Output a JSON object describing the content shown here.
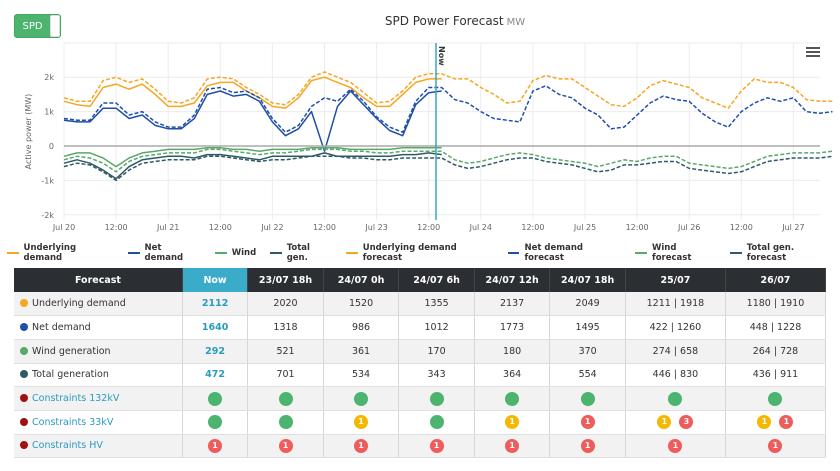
{
  "toggle": {
    "label": "SPD",
    "state": "on"
  },
  "chart_title": "SPD Power Forecast",
  "chart_unit": "MW",
  "menu_icon": "hamburger-menu-icon",
  "colors": {
    "underlying": "#f5a623",
    "net": "#1f4fa8",
    "wind": "#5aa86a",
    "total": "#2e5a66",
    "now_line": "#3aa6bf",
    "zero_line": "#aaaaaa",
    "grid": "#ececec"
  },
  "chart_data": {
    "type": "line",
    "title": "SPD Power Forecast",
    "unit": "MW",
    "ylabel": "Active power (MW)",
    "xlabel": "",
    "ylim": [
      -2200,
      2800
    ],
    "x_range_days": [
      0,
      7.3
    ],
    "x_unit": "days since Jul 20 00:00, sampled every 3h",
    "x_ticks": [
      {
        "day": 0,
        "label": "Jul 20"
      },
      {
        "day": 0.5,
        "label": "12:00"
      },
      {
        "day": 1,
        "label": "Jul 21"
      },
      {
        "day": 1.5,
        "label": "12:00"
      },
      {
        "day": 2,
        "label": "Jul 22"
      },
      {
        "day": 2.5,
        "label": "12:00"
      },
      {
        "day": 3,
        "label": "Jul 23"
      },
      {
        "day": 3.5,
        "label": "12:00"
      },
      {
        "day": 4,
        "label": "Jul 24"
      },
      {
        "day": 4.5,
        "label": "12:00"
      },
      {
        "day": 5,
        "label": "Jul 25"
      },
      {
        "day": 5.5,
        "label": "12:00"
      },
      {
        "day": 6,
        "label": "Jul 26"
      },
      {
        "day": 6.5,
        "label": "12:00"
      },
      {
        "day": 7,
        "label": "Jul 27"
      }
    ],
    "y_ticks": [
      {
        "value": 2000,
        "label": "2k"
      },
      {
        "value": 1000,
        "label": "1k"
      },
      {
        "value": 0,
        "label": "0"
      },
      {
        "value": -1000,
        "label": "-1k"
      },
      {
        "value": -2000,
        "label": "-2k"
      }
    ],
    "now_marker": {
      "day": 3.57,
      "label": "Now"
    },
    "grid": true,
    "legend_position": "bottom",
    "series": [
      {
        "name": "Underlying demand",
        "key": "underlying",
        "dashed": false,
        "start_day": 0,
        "step_days": 0.125,
        "values": [
          1300,
          1200,
          1150,
          1700,
          1800,
          1650,
          1800,
          1500,
          1150,
          1150,
          1250,
          1750,
          1850,
          1850,
          1600,
          1400,
          1150,
          1100,
          1400,
          1900,
          2000,
          1850,
          1700,
          1400,
          1150,
          1150,
          1500,
          1850,
          1950,
          1950
        ]
      },
      {
        "name": "Net demand",
        "key": "net",
        "dashed": false,
        "start_day": 0,
        "step_days": 0.125,
        "values": [
          750,
          700,
          700,
          1100,
          1100,
          800,
          900,
          600,
          500,
          500,
          800,
          1500,
          1600,
          1450,
          1500,
          1300,
          700,
          300,
          500,
          1000,
          -150,
          1150,
          1600,
          1200,
          800,
          450,
          300,
          1200,
          1550,
          1600
        ]
      },
      {
        "name": "Wind",
        "key": "wind",
        "dashed": false,
        "start_day": 0,
        "step_days": 0.125,
        "values": [
          -300,
          -200,
          -200,
          -350,
          -600,
          -350,
          -200,
          -150,
          -100,
          -100,
          -100,
          -50,
          -50,
          -100,
          -100,
          -150,
          -100,
          -100,
          -100,
          -50,
          -50,
          -50,
          -100,
          -100,
          -100,
          -100,
          -50,
          -50,
          -50,
          -50
        ]
      },
      {
        "name": "Total gen.",
        "key": "total",
        "dashed": false,
        "start_day": 0,
        "step_days": 0.125,
        "values": [
          -500,
          -400,
          -500,
          -700,
          -950,
          -600,
          -400,
          -350,
          -300,
          -300,
          -350,
          -250,
          -250,
          -300,
          -350,
          -400,
          -300,
          -300,
          -300,
          -300,
          -200,
          -300,
          -300,
          -300,
          -300,
          -300,
          -250,
          -250,
          -200,
          -250
        ]
      },
      {
        "name": "Underlying demand forecast",
        "key": "underlying",
        "dashed": true,
        "start_day": 0,
        "step_days": 0.125,
        "values": [
          1400,
          1300,
          1300,
          1900,
          2000,
          1850,
          1950,
          1650,
          1300,
          1250,
          1400,
          1950,
          2000,
          1950,
          1700,
          1500,
          1250,
          1200,
          1500,
          2000,
          2150,
          2000,
          1850,
          1550,
          1250,
          1300,
          1600,
          2000,
          2100,
          2100,
          1950,
          1950,
          1700,
          1500,
          1250,
          1300,
          1900,
          2050,
          1950,
          1950,
          1700,
          1450,
          1200,
          1150,
          1400,
          1750,
          1900,
          1800,
          1700,
          1400,
          1250,
          1100,
          1600,
          1950,
          1850,
          1850,
          1700,
          1350,
          1300,
          1300
        ]
      },
      {
        "name": "Net demand forecast",
        "key": "net",
        "dashed": true,
        "start_day": 0,
        "step_days": 0.125,
        "values": [
          800,
          750,
          750,
          1250,
          1250,
          900,
          1000,
          700,
          550,
          550,
          900,
          1650,
          1700,
          1550,
          1600,
          1400,
          800,
          400,
          600,
          1150,
          1400,
          1300,
          1650,
          1300,
          850,
          550,
          400,
          1300,
          1700,
          1700,
          1350,
          1250,
          1000,
          800,
          750,
          700,
          1600,
          1750,
          1500,
          1400,
          1100,
          900,
          500,
          550,
          900,
          1250,
          1450,
          1350,
          1300,
          950,
          700,
          550,
          1000,
          1250,
          1400,
          1300,
          1400,
          1000,
          950,
          1000
        ]
      },
      {
        "name": "Wind forecast",
        "key": "wind",
        "dashed": true,
        "start_day": 0,
        "step_days": 0.125,
        "values": [
          -400,
          -300,
          -350,
          -500,
          -750,
          -450,
          -300,
          -250,
          -200,
          -200,
          -200,
          -100,
          -100,
          -150,
          -200,
          -250,
          -200,
          -200,
          -150,
          -100,
          -100,
          -100,
          -150,
          -150,
          -200,
          -200,
          -150,
          -150,
          -150,
          -150,
          -400,
          -500,
          -450,
          -350,
          -250,
          -200,
          -250,
          -350,
          -400,
          -450,
          -500,
          -600,
          -500,
          -400,
          -450,
          -350,
          -300,
          -300,
          -500,
          -550,
          -600,
          -650,
          -600,
          -450,
          -300,
          -250,
          -200,
          -200,
          -200,
          -150
        ]
      },
      {
        "name": "Total gen. forecast",
        "key": "total",
        "dashed": true,
        "start_day": 0,
        "step_days": 0.125,
        "values": [
          -600,
          -500,
          -550,
          -750,
          -1000,
          -700,
          -500,
          -450,
          -400,
          -400,
          -400,
          -300,
          -300,
          -350,
          -400,
          -450,
          -400,
          -400,
          -350,
          -300,
          -300,
          -300,
          -350,
          -350,
          -400,
          -400,
          -350,
          -350,
          -350,
          -350,
          -550,
          -650,
          -600,
          -500,
          -400,
          -350,
          -350,
          -450,
          -500,
          -550,
          -650,
          -750,
          -700,
          -550,
          -550,
          -500,
          -450,
          -450,
          -650,
          -700,
          -750,
          -800,
          -750,
          -600,
          -450,
          -400,
          -350,
          -350,
          -350,
          -300
        ]
      }
    ]
  },
  "legend": [
    {
      "label": "Underlying demand",
      "key": "underlying",
      "dashed": false
    },
    {
      "label": "Net demand",
      "key": "net",
      "dashed": false
    },
    {
      "label": "Wind",
      "key": "wind",
      "dashed": false
    },
    {
      "label": "Total gen.",
      "key": "total",
      "dashed": false
    },
    {
      "label": "Underlying demand forecast",
      "key": "underlying",
      "dashed": true
    },
    {
      "label": "Net demand forecast",
      "key": "net",
      "dashed": true
    },
    {
      "label": "Wind forecast",
      "key": "wind",
      "dashed": true
    },
    {
      "label": "Total gen. forecast",
      "key": "total",
      "dashed": true
    }
  ],
  "table": {
    "headers": [
      "Forecast",
      "Now",
      "23/07 18h",
      "24/07 0h",
      "24/07 6h",
      "24/07 12h",
      "24/07 18h",
      "25/07",
      "26/07"
    ],
    "value_rows": [
      {
        "label": "Underlying demand",
        "dot": "underlying",
        "values": [
          "2112",
          "2020",
          "1520",
          "1355",
          "2137",
          "2049",
          "1211 | 1918",
          "1180 | 1910"
        ]
      },
      {
        "label": "Net demand",
        "dot": "net",
        "values": [
          "1640",
          "1318",
          "986",
          "1012",
          "1773",
          "1495",
          "422 | 1260",
          "448 | 1228"
        ]
      },
      {
        "label": "Wind generation",
        "dot": "wind",
        "values": [
          "292",
          "521",
          "361",
          "170",
          "180",
          "370",
          "274 | 658",
          "264 | 728"
        ]
      },
      {
        "label": "Total generation",
        "dot": "total",
        "values": [
          "472",
          "701",
          "534",
          "343",
          "364",
          "554",
          "446 | 830",
          "436 | 911"
        ]
      }
    ],
    "constraint_dot_color": "#a01010",
    "constraint_rows": [
      {
        "label": "Constraints 132kV",
        "cells": [
          [
            {
              "c": "green",
              "n": ""
            }
          ],
          [
            {
              "c": "green",
              "n": ""
            }
          ],
          [
            {
              "c": "green",
              "n": ""
            }
          ],
          [
            {
              "c": "green",
              "n": ""
            }
          ],
          [
            {
              "c": "green",
              "n": ""
            }
          ],
          [
            {
              "c": "green",
              "n": ""
            }
          ],
          [
            {
              "c": "green",
              "n": ""
            }
          ],
          [
            {
              "c": "green",
              "n": ""
            }
          ]
        ]
      },
      {
        "label": "Constraints 33kV",
        "cells": [
          [
            {
              "c": "green",
              "n": ""
            }
          ],
          [
            {
              "c": "green",
              "n": ""
            }
          ],
          [
            {
              "c": "yellow",
              "n": "1"
            }
          ],
          [
            {
              "c": "green",
              "n": ""
            }
          ],
          [
            {
              "c": "yellow",
              "n": "1"
            }
          ],
          [
            {
              "c": "red",
              "n": "1"
            }
          ],
          [
            {
              "c": "yellow",
              "n": "1"
            },
            {
              "c": "red",
              "n": "3"
            }
          ],
          [
            {
              "c": "yellow",
              "n": "1"
            },
            {
              "c": "red",
              "n": "1"
            }
          ]
        ]
      },
      {
        "label": "Constraints HV",
        "cells": [
          [
            {
              "c": "red",
              "n": "1"
            }
          ],
          [
            {
              "c": "red",
              "n": "1"
            }
          ],
          [
            {
              "c": "red",
              "n": "1"
            }
          ],
          [
            {
              "c": "red",
              "n": "1"
            }
          ],
          [
            {
              "c": "red",
              "n": "1"
            }
          ],
          [
            {
              "c": "red",
              "n": "1"
            }
          ],
          [
            {
              "c": "red",
              "n": "1"
            }
          ],
          [
            {
              "c": "red",
              "n": "1"
            }
          ]
        ]
      }
    ]
  }
}
